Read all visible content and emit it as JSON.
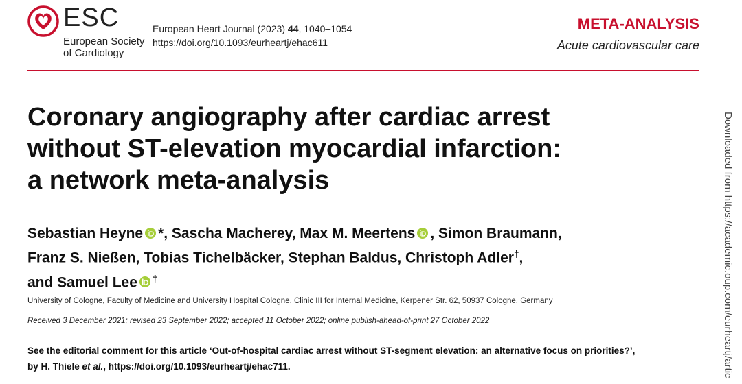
{
  "header": {
    "logo": {
      "abbr": "ESC",
      "line1": "European Society",
      "line2": "of Cardiology"
    },
    "journal": {
      "name": "European Heart Journal (2023)",
      "volume": "44",
      "pages": ", 1040–1054",
      "doi": "https://doi.org/10.1093/eurheartj/ehac611"
    },
    "section": "META-ANALYSIS",
    "subsection": "Acute cardiovascular care"
  },
  "title": [
    "Coronary angiography after cardiac arrest",
    "without ST-elevation myocardial infarction:",
    "a network meta-analysis"
  ],
  "authors": {
    "line1": [
      "Sebastian Heyne",
      "*, Sascha Macherey, Max M. Meertens",
      ", Simon Braumann,"
    ],
    "line2": [
      "Franz S. Nießen, Tobias Tichelbäcker, Stephan Baldus, Christoph Adler",
      "†",
      ","
    ],
    "line3": [
      "and Samuel Lee",
      "†"
    ]
  },
  "affiliation": "University of Cologne, Faculty of Medicine and University Hospital Cologne, Clinic III for Internal Medicine, Kerpener Str. 62, 50937 Cologne, Germany",
  "dates": "Received 3 December 2021; revised 23 September 2022; accepted 11 October 2022; online publish-ahead-of-print 27 October 2022",
  "editorial": {
    "line1": "See the editorial comment for this article ‘Out-of-hospital cardiac arrest without ST-segment elevation: an alternative focus on priorities?’,",
    "line2_pre": "by H. Thiele ",
    "line2_italic": "et al.",
    "line2_post": ", https://doi.org/10.1093/eurheartj/ehac711."
  },
  "side_note": "Downloaded from https://academic.oup.com/eurheartj/artic"
}
